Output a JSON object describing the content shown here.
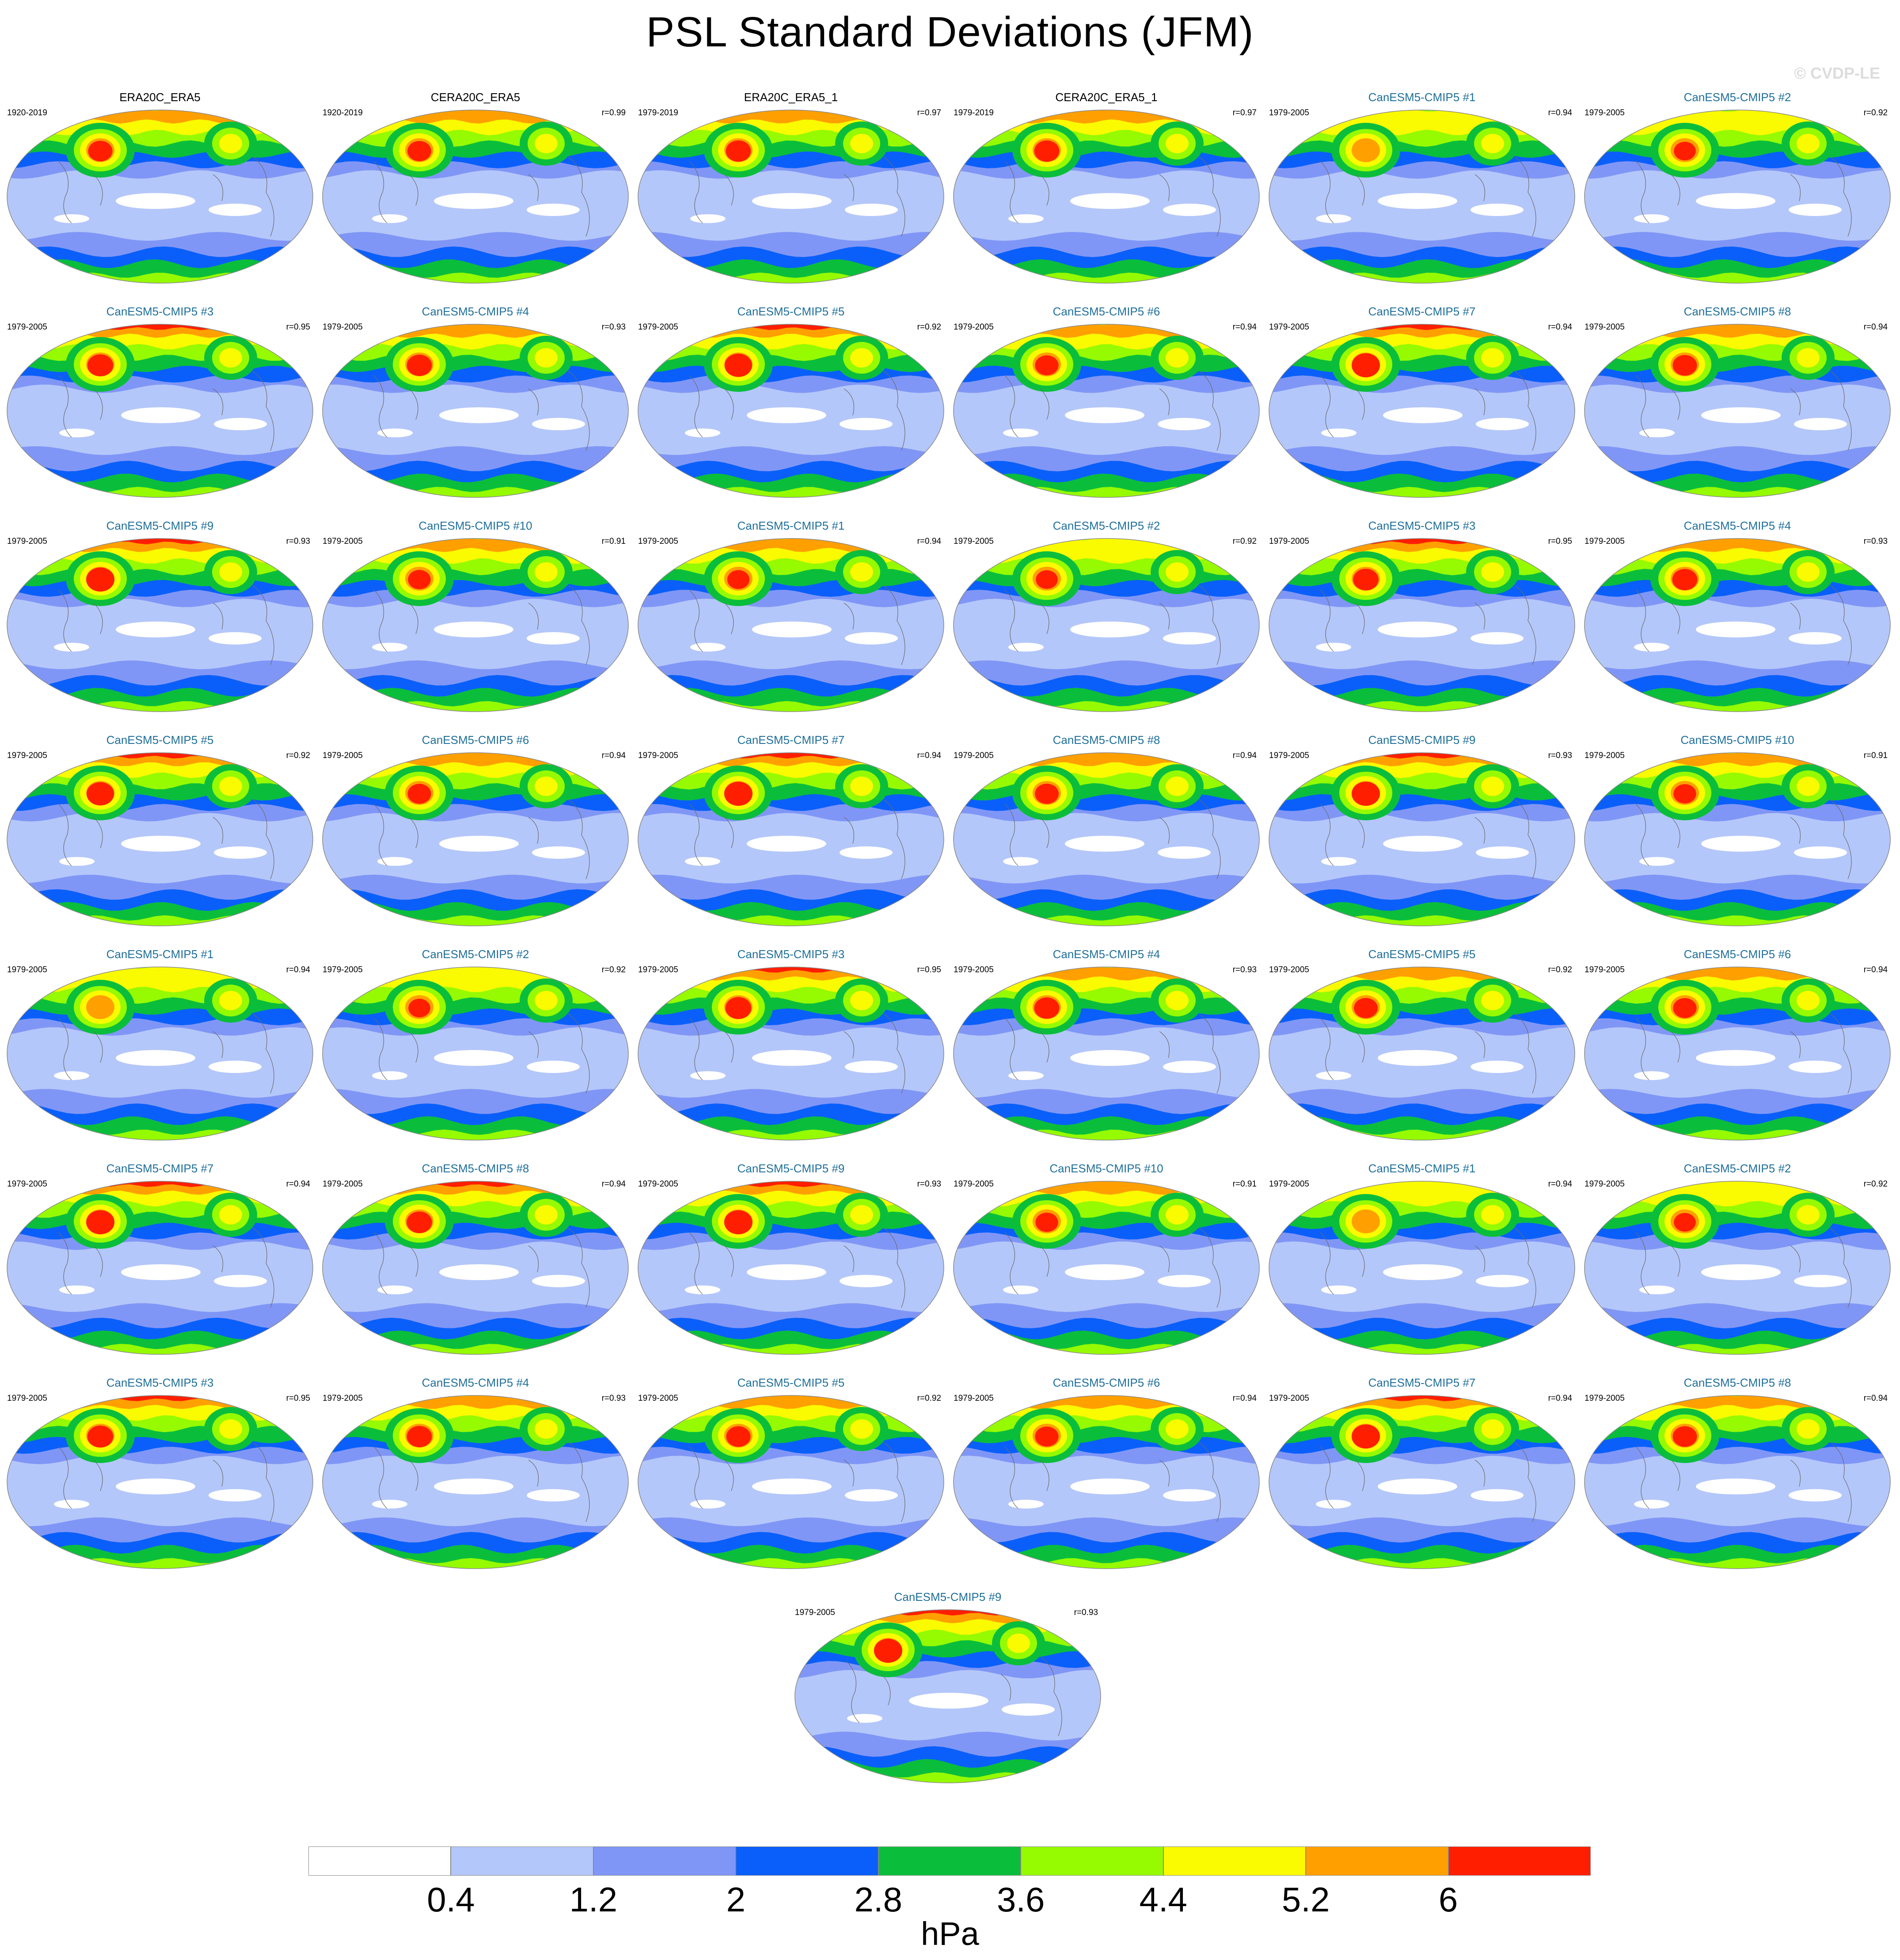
{
  "title": "PSL Standard Deviations (JFM)",
  "watermark": "© CVDP-LE",
  "colorbar": {
    "colors": [
      "#ffffff",
      "#b4c7fa",
      "#8096f6",
      "#0a5ffa",
      "#0abe3c",
      "#96fa00",
      "#fafa00",
      "#ffa000",
      "#ff1e00"
    ],
    "labels": [
      "0.4",
      "1.2",
      "2",
      "2.8",
      "3.6",
      "4.4",
      "5.2",
      "6"
    ],
    "units": "hPa"
  },
  "panels": [
    {
      "title": "ERA20C_ERA5",
      "years": "1920-2019",
      "corr": "",
      "obs": true,
      "intensity": 0.75
    },
    {
      "title": "CERA20C_ERA5",
      "years": "1920-2019",
      "corr": "r=0.99",
      "obs": true,
      "intensity": 0.72
    },
    {
      "title": "ERA20C_ERA5_1",
      "years": "1979-2019",
      "corr": "r=0.97",
      "obs": true,
      "intensity": 0.8
    },
    {
      "title": "CERA20C_ERA5_1",
      "years": "1979-2019",
      "corr": "r=0.97",
      "obs": true,
      "intensity": 0.8
    },
    {
      "title": "CanESM5-CMIP5 #1",
      "years": "1979-2005",
      "corr": "r=0.94",
      "obs": false,
      "intensity": 0.55
    },
    {
      "title": "CanESM5-CMIP5 #2",
      "years": "1979-2005",
      "corr": "r=0.92",
      "obs": false,
      "intensity": 0.6
    },
    {
      "title": "CanESM5-CMIP5 #3",
      "years": "1979-2005",
      "corr": "r=0.95",
      "obs": false,
      "intensity": 0.85
    },
    {
      "title": "CanESM5-CMIP5 #4",
      "years": "1979-2005",
      "corr": "r=0.93",
      "obs": false,
      "intensity": 0.8
    },
    {
      "title": "CanESM5-CMIP5 #5",
      "years": "1979-2005",
      "corr": "r=0.92",
      "obs": false,
      "intensity": 0.95
    },
    {
      "title": "CanESM5-CMIP5 #6",
      "years": "1979-2005",
      "corr": "r=0.94",
      "obs": false,
      "intensity": 0.7
    },
    {
      "title": "CanESM5-CMIP5 #7",
      "years": "1979-2005",
      "corr": "r=0.94",
      "obs": false,
      "intensity": 1.0
    },
    {
      "title": "CanESM5-CMIP5 #8",
      "years": "1979-2005",
      "corr": "r=0.94",
      "obs": false,
      "intensity": 0.75
    },
    {
      "title": "CanESM5-CMIP5 #9",
      "years": "1979-2005",
      "corr": "r=0.93",
      "obs": false,
      "intensity": 1.0
    },
    {
      "title": "CanESM5-CMIP5 #10",
      "years": "1979-2005",
      "corr": "r=0.91",
      "obs": false,
      "intensity": 0.65
    },
    {
      "title": "CanESM5-CMIP5 #1",
      "years": "1979-2005",
      "corr": "r=0.94",
      "obs": false,
      "intensity": 0.62
    },
    {
      "title": "CanESM5-CMIP5 #2",
      "years": "1979-2005",
      "corr": "r=0.92",
      "obs": false,
      "intensity": 0.6
    },
    {
      "title": "CanESM5-CMIP5 #3",
      "years": "1979-2005",
      "corr": "r=0.95",
      "obs": false,
      "intensity": 0.82
    },
    {
      "title": "CanESM5-CMIP5 #4",
      "years": "1979-2005",
      "corr": "r=0.93",
      "obs": false,
      "intensity": 0.8
    },
    {
      "title": "CanESM5-CMIP5 #5",
      "years": "1979-2005",
      "corr": "r=0.92",
      "obs": false,
      "intensity": 0.95
    },
    {
      "title": "CanESM5-CMIP5 #6",
      "years": "1979-2005",
      "corr": "r=0.94",
      "obs": false,
      "intensity": 0.7
    },
    {
      "title": "CanESM5-CMIP5 #7",
      "years": "1979-2005",
      "corr": "r=0.94",
      "obs": false,
      "intensity": 1.0
    },
    {
      "title": "CanESM5-CMIP5 #8",
      "years": "1979-2005",
      "corr": "r=0.94",
      "obs": false,
      "intensity": 0.72
    },
    {
      "title": "CanESM5-CMIP5 #9",
      "years": "1979-2005",
      "corr": "r=0.93",
      "obs": false,
      "intensity": 1.0
    },
    {
      "title": "CanESM5-CMIP5 #10",
      "years": "1979-2005",
      "corr": "r=0.91",
      "obs": false,
      "intensity": 0.65
    },
    {
      "title": "CanESM5-CMIP5 #1",
      "years": "1979-2005",
      "corr": "r=0.94",
      "obs": false,
      "intensity": 0.55
    },
    {
      "title": "CanESM5-CMIP5 #2",
      "years": "1979-2005",
      "corr": "r=0.92",
      "obs": false,
      "intensity": 0.6
    },
    {
      "title": "CanESM5-CMIP5 #3",
      "years": "1979-2005",
      "corr": "r=0.95",
      "obs": false,
      "intensity": 0.85
    },
    {
      "title": "CanESM5-CMIP5 #4",
      "years": "1979-2005",
      "corr": "r=0.93",
      "obs": false,
      "intensity": 0.8
    },
    {
      "title": "CanESM5-CMIP5 #5",
      "years": "1979-2005",
      "corr": "r=0.92",
      "obs": false,
      "intensity": 0.72
    },
    {
      "title": "CanESM5-CMIP5 #6",
      "years": "1979-2005",
      "corr": "r=0.94",
      "obs": false,
      "intensity": 0.7
    },
    {
      "title": "CanESM5-CMIP5 #7",
      "years": "1979-2005",
      "corr": "r=0.94",
      "obs": false,
      "intensity": 1.0
    },
    {
      "title": "CanESM5-CMIP5 #8",
      "years": "1979-2005",
      "corr": "r=0.94",
      "obs": false,
      "intensity": 0.82
    },
    {
      "title": "CanESM5-CMIP5 #9",
      "years": "1979-2005",
      "corr": "r=0.93",
      "obs": false,
      "intensity": 1.0
    },
    {
      "title": "CanESM5-CMIP5 #10",
      "years": "1979-2005",
      "corr": "r=0.91",
      "obs": false,
      "intensity": 0.65
    },
    {
      "title": "CanESM5-CMIP5 #1",
      "years": "1979-2005",
      "corr": "r=0.94",
      "obs": false,
      "intensity": 0.55
    },
    {
      "title": "CanESM5-CMIP5 #2",
      "years": "1979-2005",
      "corr": "r=0.92",
      "obs": false,
      "intensity": 0.6
    },
    {
      "title": "CanESM5-CMIP5 #3",
      "years": "1979-2005",
      "corr": "r=0.95",
      "obs": false,
      "intensity": 0.85
    },
    {
      "title": "CanESM5-CMIP5 #4",
      "years": "1979-2005",
      "corr": "r=0.93",
      "obs": false,
      "intensity": 0.8
    },
    {
      "title": "CanESM5-CMIP5 #5",
      "years": "1979-2005",
      "corr": "r=0.92",
      "obs": false,
      "intensity": 0.75
    },
    {
      "title": "CanESM5-CMIP5 #6",
      "years": "1979-2005",
      "corr": "r=0.94",
      "obs": false,
      "intensity": 0.7
    },
    {
      "title": "CanESM5-CMIP5 #7",
      "years": "1979-2005",
      "corr": "r=0.94",
      "obs": false,
      "intensity": 1.0
    },
    {
      "title": "CanESM5-CMIP5 #8",
      "years": "1979-2005",
      "corr": "r=0.94",
      "obs": false,
      "intensity": 0.75
    },
    {
      "title": "CanESM5-CMIP5 #9",
      "years": "1979-2005",
      "corr": "r=0.93",
      "obs": false,
      "intensity": 1.0
    }
  ]
}
